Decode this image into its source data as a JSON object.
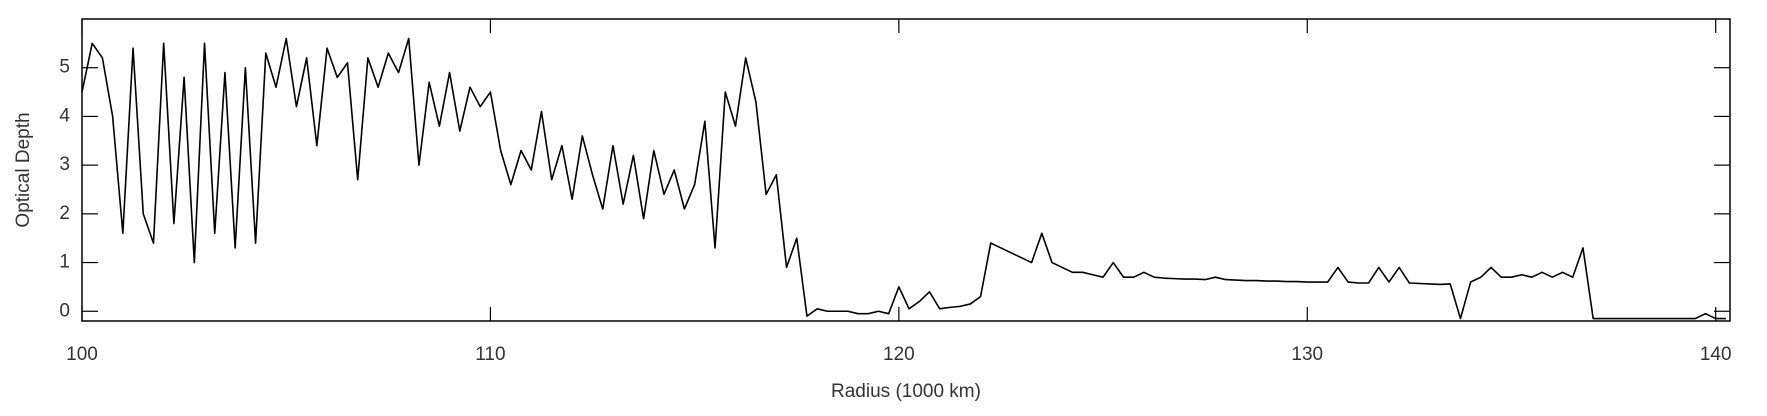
{
  "chart_data": {
    "type": "line",
    "xlabel": "Radius (1000 km)",
    "ylabel": "Optical Depth",
    "xlim": [
      100,
      140.35
    ],
    "ylim": [
      -0.2,
      6.0
    ],
    "xticks": [
      100,
      110,
      120,
      130,
      140
    ],
    "yticks": [
      0,
      1,
      2,
      3,
      4,
      5
    ],
    "series": [
      {
        "color": "#000000",
        "x": [
          100,
          100.25,
          100.5,
          100.75,
          101,
          101.25,
          101.5,
          101.75,
          102,
          102.25,
          102.5,
          102.75,
          103,
          103.25,
          103.5,
          103.75,
          104,
          104.25,
          104.5,
          104.75,
          105,
          105.25,
          105.5,
          105.75,
          106,
          106.25,
          106.5,
          106.75,
          107,
          107.25,
          107.5,
          107.75,
          108,
          108.25,
          108.5,
          108.75,
          109,
          109.25,
          109.5,
          109.75,
          110,
          110.25,
          110.5,
          110.75,
          111,
          111.25,
          111.5,
          111.75,
          112,
          112.25,
          112.5,
          112.75,
          113,
          113.25,
          113.5,
          113.75,
          114,
          114.25,
          114.5,
          114.75,
          115,
          115.25,
          115.5,
          115.75,
          116,
          116.25,
          116.5,
          116.75,
          117,
          117.25,
          117.5,
          117.75,
          118,
          118.25,
          118.5,
          118.75,
          119,
          119.25,
          119.5,
          119.75,
          120,
          120.25,
          120.5,
          120.75,
          121,
          121.25,
          121.5,
          121.75,
          122,
          122.25,
          122.5,
          122.75,
          123,
          123.25,
          123.5,
          123.75,
          124,
          124.25,
          124.5,
          124.75,
          125,
          125.25,
          125.5,
          125.75,
          126,
          126.25,
          126.5,
          126.75,
          127,
          127.25,
          127.5,
          127.75,
          128,
          128.25,
          128.5,
          128.75,
          129,
          129.25,
          129.5,
          129.75,
          130,
          130.25,
          130.5,
          130.75,
          131,
          131.25,
          131.5,
          131.75,
          132,
          132.25,
          132.5,
          132.75,
          133,
          133.25,
          133.5,
          133.75,
          134,
          134.25,
          134.5,
          134.75,
          135,
          135.25,
          135.5,
          135.75,
          136,
          136.25,
          136.5,
          136.75,
          137,
          137.25,
          137.5,
          137.75,
          138,
          138.25,
          138.5,
          138.75,
          139,
          139.25,
          139.5,
          139.75,
          140,
          140.25
        ],
        "values": [
          4.5,
          5.5,
          5.2,
          4.0,
          1.6,
          5.4,
          2.0,
          1.4,
          5.5,
          1.8,
          4.8,
          1.0,
          5.5,
          1.6,
          4.9,
          1.3,
          5.0,
          1.4,
          5.3,
          4.6,
          5.6,
          4.2,
          5.2,
          3.4,
          5.4,
          4.8,
          5.1,
          2.7,
          5.2,
          4.6,
          5.3,
          4.9,
          5.6,
          3.0,
          4.7,
          3.8,
          4.9,
          3.7,
          4.6,
          4.2,
          4.5,
          3.3,
          2.6,
          3.3,
          2.9,
          4.1,
          2.7,
          3.4,
          2.3,
          3.6,
          2.8,
          2.1,
          3.4,
          2.2,
          3.2,
          1.9,
          3.3,
          2.4,
          2.9,
          2.1,
          2.6,
          3.9,
          1.3,
          4.5,
          3.8,
          5.2,
          4.3,
          2.4,
          2.8,
          0.9,
          1.5,
          -0.1,
          0.05,
          0.0,
          0.0,
          0.0,
          -0.05,
          -0.05,
          0.0,
          -0.05,
          0.5,
          0.05,
          0.2,
          0.4,
          0.05,
          0.08,
          0.1,
          0.15,
          0.3,
          1.4,
          1.3,
          1.2,
          1.1,
          1.0,
          1.6,
          1.0,
          0.9,
          0.8,
          0.8,
          0.75,
          0.7,
          1.0,
          0.7,
          0.7,
          0.8,
          0.7,
          0.68,
          0.67,
          0.66,
          0.66,
          0.65,
          0.7,
          0.65,
          0.64,
          0.63,
          0.63,
          0.62,
          0.62,
          0.61,
          0.61,
          0.6,
          0.6,
          0.6,
          0.9,
          0.6,
          0.58,
          0.58,
          0.9,
          0.6,
          0.9,
          0.58,
          0.57,
          0.56,
          0.55,
          0.56,
          -0.15,
          0.6,
          0.7,
          0.9,
          0.7,
          0.7,
          0.75,
          0.7,
          0.8,
          0.7,
          0.8,
          0.7,
          1.3,
          -0.15,
          -0.15,
          -0.15,
          -0.15,
          -0.15,
          -0.15,
          -0.15,
          -0.15,
          -0.15,
          -0.15,
          -0.15,
          -0.05,
          -0.15,
          -0.15
        ]
      }
    ]
  }
}
